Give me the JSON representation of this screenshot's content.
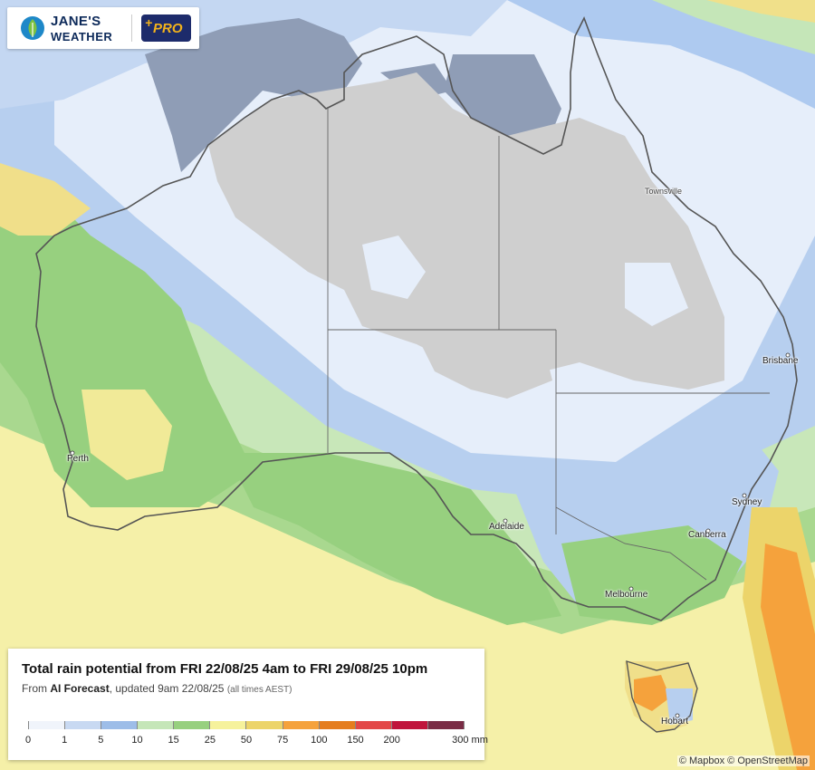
{
  "app": {
    "logo_line1": "JANE'S",
    "logo_line2": "WEATHER",
    "pro_label": "PRO"
  },
  "legend": {
    "title": "Total rain potential from FRI 22/08/25 4am to FRI 29/08/25 10pm",
    "from_prefix": "From ",
    "source": "AI Forecast",
    "updated": ", updated 9am 22/08/25 ",
    "timezone_note": "(all times AEST)",
    "ticks": [
      "0",
      "1",
      "5",
      "10",
      "15",
      "25",
      "50",
      "75",
      "100",
      "150",
      "200",
      "300 mm"
    ],
    "colors": [
      "#f0f4fb",
      "#c8d9f2",
      "#9dbde8",
      "#c5e6b8",
      "#97d07f",
      "#f6f29c",
      "#ecd46a",
      "#f5a23c",
      "#e57d1e",
      "#e34848",
      "#c0143c",
      "#7a2c45"
    ]
  },
  "cities": [
    "Townsville",
    "Brisbane",
    "Perth",
    "Sydney",
    "Adelaide",
    "Canberra",
    "Melbourne",
    "Hobart"
  ],
  "attribution": "© Mapbox © OpenStreetMap",
  "colors": {
    "no_rain": "#cfcfcf",
    "ocean_dark": "#8f9db6",
    "brand_navy": "#1d2b6b",
    "brand_gold": "#f2b21b"
  }
}
